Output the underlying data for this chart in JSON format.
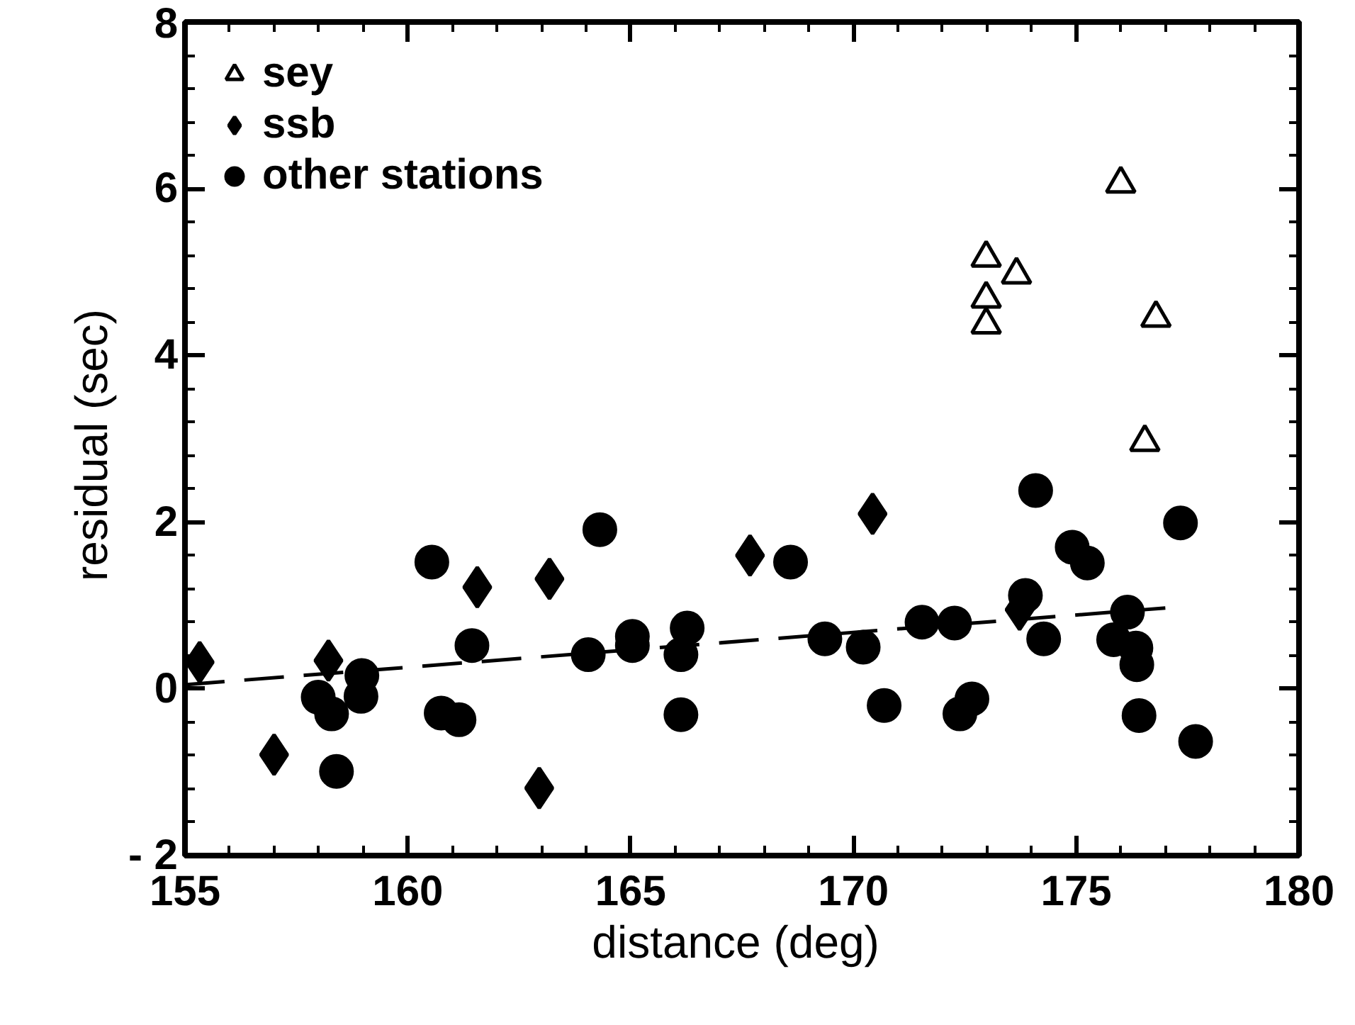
{
  "chart_data": {
    "type": "scatter",
    "xlabel": "distance  (deg)",
    "ylabel": "residual  (sec)",
    "xlim": [
      155,
      180
    ],
    "ylim": [
      -2,
      8
    ],
    "xticks": [
      155,
      160,
      165,
      170,
      175,
      180
    ],
    "yticks": [
      {
        "value": -2,
        "label": "- 2"
      },
      0,
      2,
      4,
      6,
      8
    ],
    "grid": false,
    "legend": "top left",
    "series": [
      {
        "name": "sey",
        "color": "#000000",
        "marker": "triangle",
        "x": [
          172.98,
          172.98,
          172.98,
          173.66,
          176.0,
          176.79,
          176.54
        ],
        "values": [
          5.17,
          4.68,
          4.37,
          4.97,
          6.06,
          4.45,
          2.96
        ]
      },
      {
        "name": "ssb",
        "color": "#000000",
        "marker": "diamond",
        "x": [
          155.33,
          157.0,
          158.22,
          161.56,
          163.18,
          162.95,
          167.68,
          170.43,
          173.73
        ],
        "values": [
          0.32,
          -0.79,
          0.34,
          1.22,
          1.32,
          -1.19,
          1.6,
          2.1,
          0.95
        ]
      },
      {
        "name": "other stations",
        "color": "#000000",
        "marker": "circle",
        "x": [
          157.99,
          158.29,
          158.97,
          158.95,
          158.4,
          160.54,
          161.44,
          160.75,
          161.15,
          164.31,
          164.05,
          165.04,
          165.04,
          166.27,
          166.13,
          166.13,
          168.59,
          169.36,
          170.22,
          170.69,
          171.54,
          172.27,
          172.39,
          172.66,
          174.09,
          173.86,
          174.27,
          174.91,
          175.25,
          176.15,
          175.84,
          176.34,
          176.36,
          176.41,
          177.34,
          177.68
        ],
        "values": [
          -0.1,
          -0.3,
          0.16,
          -0.09,
          -0.99,
          1.52,
          0.52,
          -0.29,
          -0.37,
          1.91,
          0.41,
          0.63,
          0.52,
          0.73,
          0.41,
          -0.31,
          1.52,
          0.6,
          0.5,
          -0.2,
          0.8,
          0.79,
          -0.3,
          -0.12,
          2.38,
          1.12,
          0.6,
          1.7,
          1.51,
          0.92,
          0.59,
          0.49,
          0.29,
          -0.32,
          1.99,
          -0.63
        ]
      },
      {
        "type": "line",
        "color": "#000000",
        "line_style": "dashed",
        "x": [
          155.0,
          177.0
        ],
        "values": [
          0.05,
          0.97
        ]
      }
    ]
  }
}
